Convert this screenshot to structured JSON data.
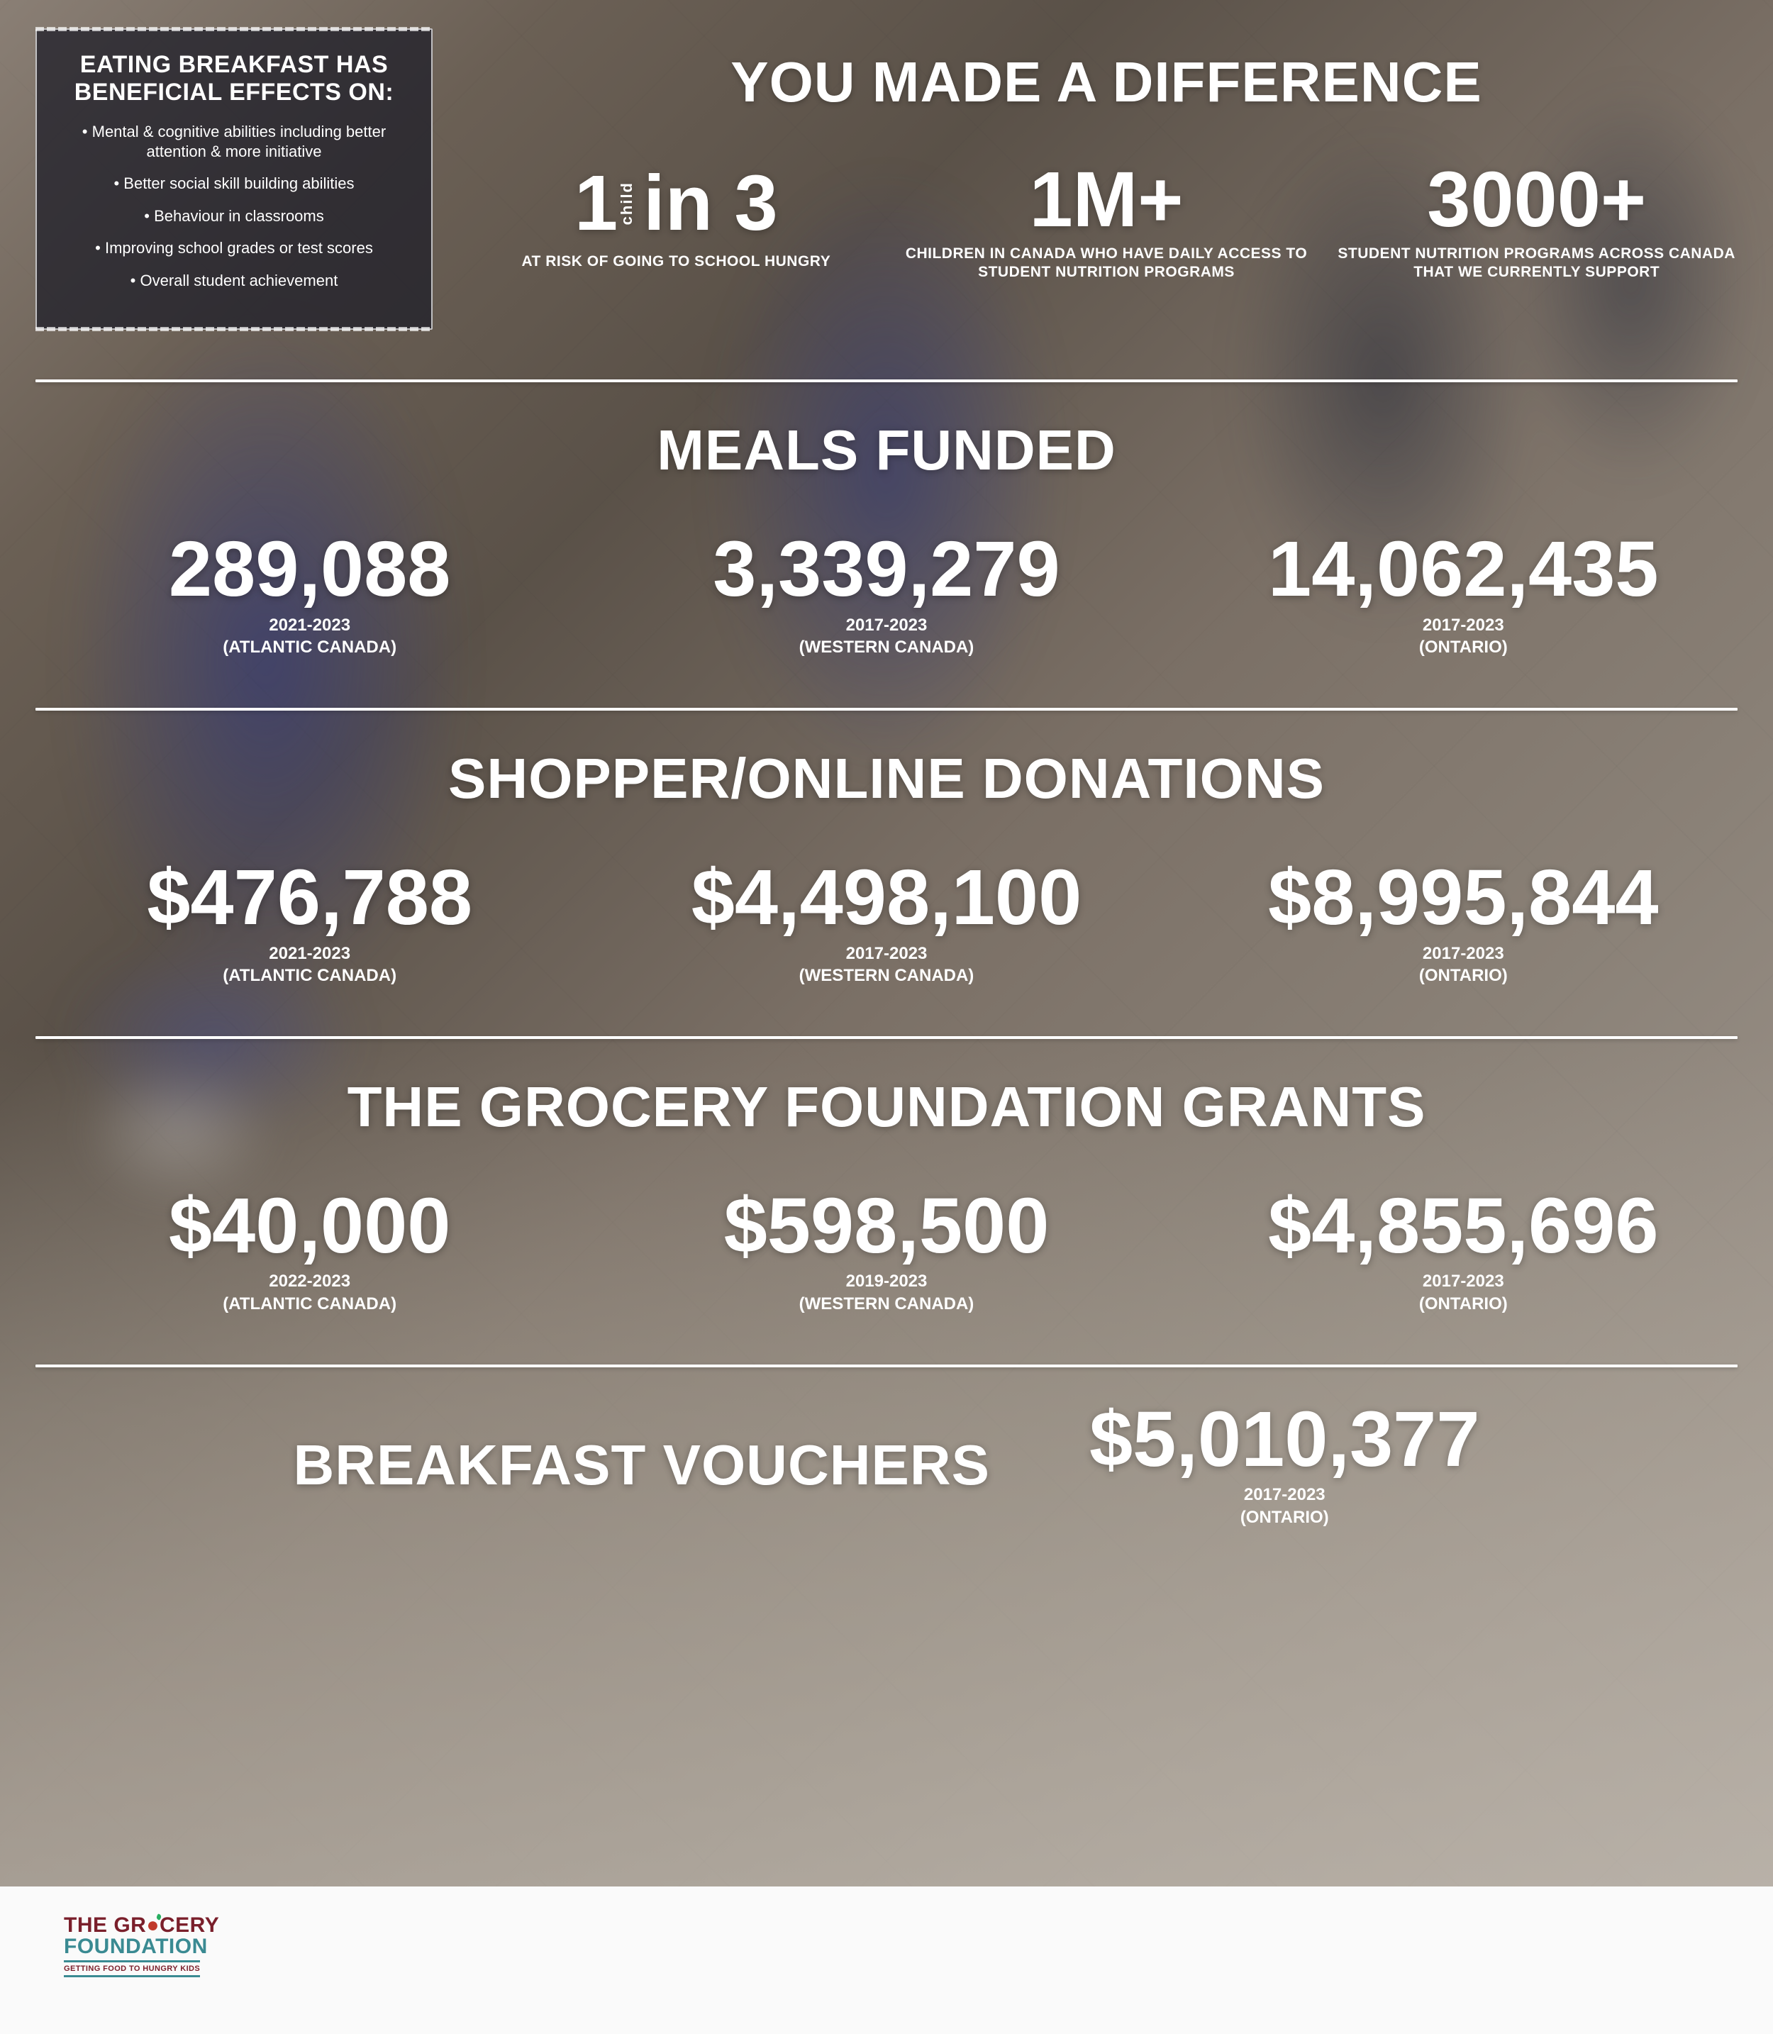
{
  "benefits": {
    "title": "EATING BREAKFAST HAS BENEFICIAL EFFECTS ON:",
    "items": [
      "Mental & cognitive abilities including better attention & more initiative",
      "Better social skill building abilities",
      "Behaviour in classrooms",
      "Improving school grades or test scores",
      "Overall student achievement"
    ]
  },
  "headline": "YOU MADE A DIFFERENCE",
  "top_stats": [
    {
      "prefix_digit": "1",
      "prefix_label": "child",
      "value": "in 3",
      "caption": "AT RISK OF GOING TO SCHOOL HUNGRY"
    },
    {
      "value": "1M+",
      "caption": "CHILDREN IN CANADA WHO HAVE DAILY ACCESS TO STUDENT NUTRITION PROGRAMS"
    },
    {
      "value": "3000+",
      "caption": "STUDENT NUTRITION PROGRAMS ACROSS CANADA THAT WE CURRENTLY SUPPORT"
    }
  ],
  "sections": [
    {
      "title": "MEALS FUNDED",
      "stats": [
        {
          "value": "289,088",
          "period": "2021-2023",
          "region": "(ATLANTIC CANADA)"
        },
        {
          "value": "3,339,279",
          "period": "2017-2023",
          "region": "(WESTERN CANADA)"
        },
        {
          "value": "14,062,435",
          "period": "2017-2023",
          "region": "(ONTARIO)"
        }
      ]
    },
    {
      "title": "SHOPPER/ONLINE DONATIONS",
      "stats": [
        {
          "value": "$476,788",
          "period": "2021-2023",
          "region": "(ATLANTIC CANADA)"
        },
        {
          "value": "$4,498,100",
          "period": "2017-2023",
          "region": "(WESTERN CANADA)"
        },
        {
          "value": "$8,995,844",
          "period": "2017-2023",
          "region": "(ONTARIO)"
        }
      ]
    },
    {
      "title": "THE GROCERY FOUNDATION GRANTS",
      "stats": [
        {
          "value": "$40,000",
          "period": "2022-2023",
          "region": "(ATLANTIC CANADA)"
        },
        {
          "value": "$598,500",
          "period": "2019-2023",
          "region": "(WESTERN CANADA)"
        },
        {
          "value": "$4,855,696",
          "period": "2017-2023",
          "region": "(ONTARIO)"
        }
      ]
    }
  ],
  "vouchers": {
    "title": "BREAKFAST VOUCHERS",
    "stat": {
      "value": "$5,010,377",
      "period": "2017-2023",
      "region": "(ONTARIO)"
    }
  },
  "logo": {
    "line1_pre": "THE GR",
    "line1_post": "CERY",
    "line2": "FOUNDATION",
    "tagline": "GETTING FOOD TO HUNGRY KIDS"
  },
  "colors": {
    "text": "#ffffff",
    "logo_red": "#7a1f2b",
    "logo_teal": "#3a8a92",
    "apple": "#c0392b"
  }
}
